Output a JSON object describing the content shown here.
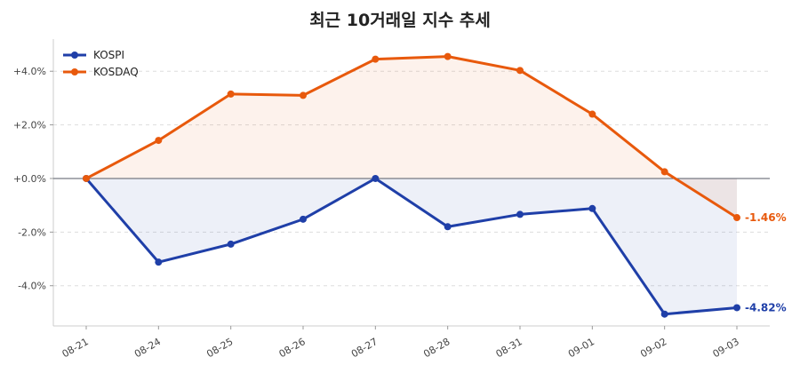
{
  "chart_data": {
    "type": "line",
    "title": "최근 10거래일 지수 추세",
    "categories": [
      "08-21",
      "08-24",
      "08-25",
      "08-26",
      "08-27",
      "08-28",
      "08-31",
      "09-01",
      "09-02",
      "09-03"
    ],
    "series": [
      {
        "name": "KOSPI",
        "color": "#1f3fa8",
        "values": [
          0.0,
          -3.12,
          -2.45,
          -1.52,
          0.0,
          -1.8,
          -1.34,
          -1.12,
          -5.06,
          -4.82
        ],
        "end_label": "-4.82%"
      },
      {
        "name": "KOSDAQ",
        "color": "#e8590c",
        "values": [
          0.0,
          1.42,
          3.15,
          3.1,
          4.45,
          4.55,
          4.03,
          2.4,
          0.25,
          -1.46
        ],
        "end_label": "-1.46%"
      }
    ],
    "yticks": [
      "+4.0%",
      "+2.0%",
      "+0.0%",
      "-2.0%",
      "-4.0%"
    ],
    "ytick_values": [
      4,
      2,
      0,
      -2,
      -4
    ],
    "ylim": [
      -5.5,
      5.2
    ],
    "xlabel": "",
    "ylabel": "",
    "grid": true,
    "legend_position": "top-left",
    "baseline": 0
  }
}
